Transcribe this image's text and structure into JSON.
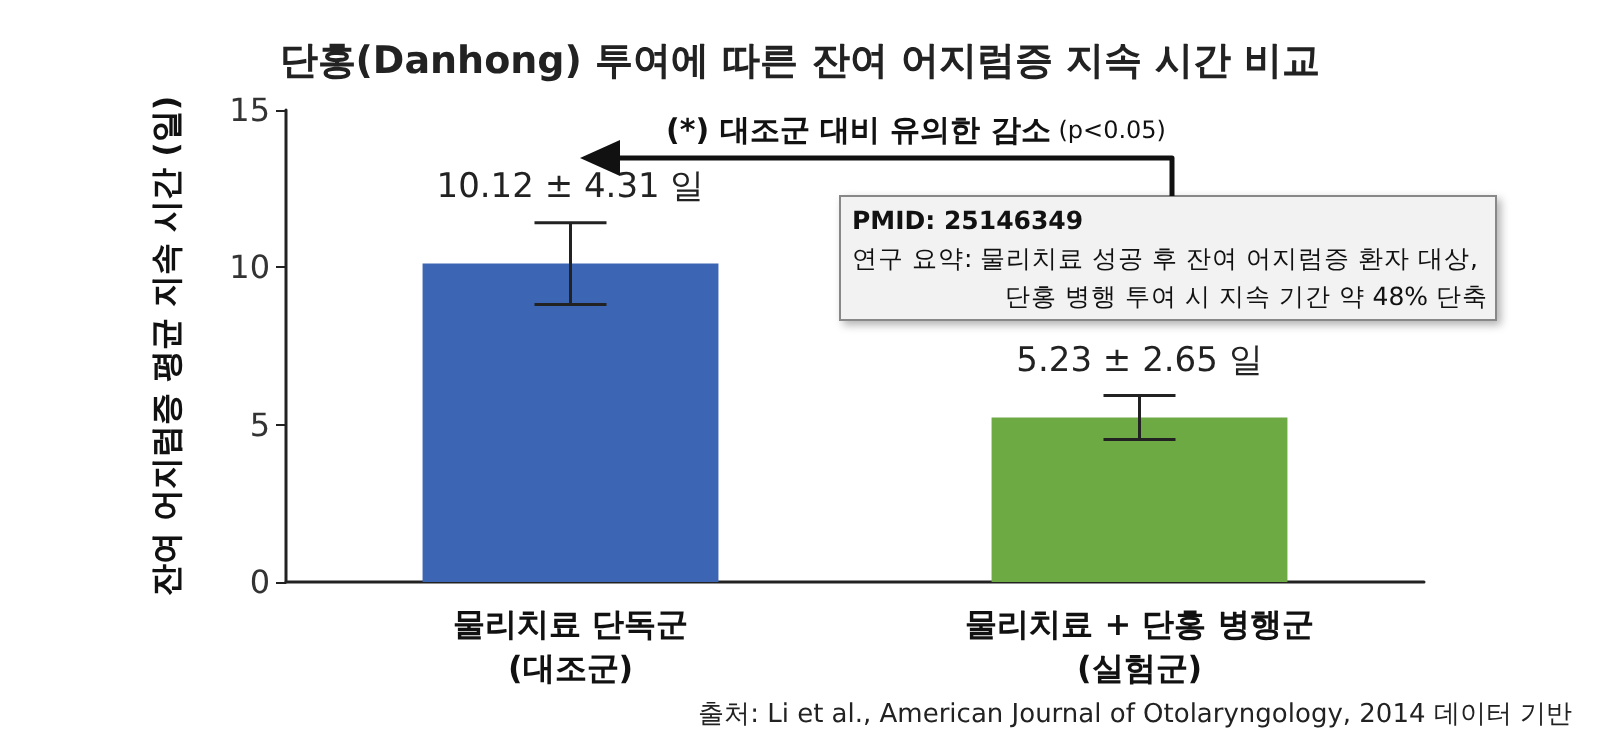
{
  "chart_data": {
    "type": "bar",
    "title": "단홍(Danhong) 투여에 따른 잔여 어지럼증 지속 시간 비교",
    "ylabel": "잔여 어지럼증 평균 지속 시간 (일)",
    "categories": [
      "물리치료 단독군\n(대조군)",
      "물리치료 + 단홍 병행군\n(실험군)"
    ],
    "values": [
      10.12,
      5.23
    ],
    "colors": [
      "#3c66b4",
      "#6eaa44"
    ],
    "errors": [
      1.3,
      0.7
    ],
    "value_labels": [
      "10.12 ± 4.31 일",
      "5.23 ± 2.65 일"
    ],
    "ylim": [
      0,
      15
    ],
    "yticks": [
      0,
      5,
      10,
      15
    ],
    "grid": false,
    "annotations": [
      "(*) 대조군 대비 유의한 감소 (p<0.05)",
      "PMID: 25146349\n연구 요약: 물리치료 성공 후 잔여 어지럼증 환자 대상,\n단홍 병행 투여 시 지속 기간 약 48% 단축",
      "출처: Li et al., American Journal of Otolaryngology, 2014 데이터 기반"
    ]
  }
}
